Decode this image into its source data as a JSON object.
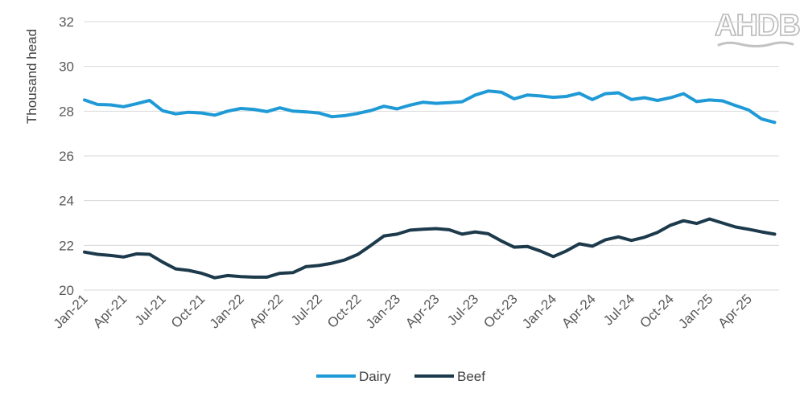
{
  "logo": {
    "text": "AHDB"
  },
  "chart_data": {
    "type": "line",
    "title": "",
    "xlabel": "",
    "ylabel": "Thousand head",
    "ylim": [
      20,
      32
    ],
    "yticks": [
      20,
      22,
      24,
      26,
      28,
      30,
      32
    ],
    "grid": true,
    "legend_position": "bottom",
    "x_tick_labels": [
      "Jan-21",
      "Apr-21",
      "Jul-21",
      "Oct-21",
      "Jan-22",
      "Apr-22",
      "Jul-22",
      "Oct-22",
      "Jan-23",
      "Apr-23",
      "Jul-23",
      "Oct-23",
      "Jan-24",
      "Apr-24",
      "Jul-24",
      "Oct-24",
      "Jan-25",
      "Apr-25"
    ],
    "x": [
      "Jan-21",
      "Feb-21",
      "Mar-21",
      "Apr-21",
      "May-21",
      "Jun-21",
      "Jul-21",
      "Aug-21",
      "Sep-21",
      "Oct-21",
      "Nov-21",
      "Dec-21",
      "Jan-22",
      "Feb-22",
      "Mar-22",
      "Apr-22",
      "May-22",
      "Jun-22",
      "Jul-22",
      "Aug-22",
      "Sep-22",
      "Oct-22",
      "Nov-22",
      "Dec-22",
      "Jan-23",
      "Feb-23",
      "Mar-23",
      "Apr-23",
      "May-23",
      "Jun-23",
      "Jul-23",
      "Aug-23",
      "Sep-23",
      "Oct-23",
      "Nov-23",
      "Dec-23",
      "Jan-24",
      "Feb-24",
      "Mar-24",
      "Apr-24",
      "May-24",
      "Jun-24",
      "Jul-24",
      "Aug-24",
      "Sep-24",
      "Oct-24",
      "Nov-24",
      "Dec-24",
      "Jan-25",
      "Feb-25",
      "Mar-25",
      "Apr-25",
      "May-25",
      "Jun-25"
    ],
    "series": [
      {
        "name": "Dairy",
        "color": "#1f9ad6",
        "values": [
          28.5,
          28.3,
          28.28,
          28.2,
          28.33,
          28.48,
          28.02,
          27.88,
          27.95,
          27.92,
          27.82,
          28.0,
          28.12,
          28.08,
          27.98,
          28.15,
          28.0,
          27.97,
          27.92,
          27.75,
          27.8,
          27.9,
          28.03,
          28.22,
          28.1,
          28.27,
          28.4,
          28.35,
          28.38,
          28.42,
          28.72,
          28.9,
          28.85,
          28.55,
          28.72,
          28.68,
          28.62,
          28.66,
          28.8,
          28.52,
          28.78,
          28.82,
          28.52,
          28.6,
          28.48,
          28.6,
          28.78,
          28.43,
          28.5,
          28.46,
          28.25,
          28.05,
          27.65,
          27.5
        ]
      },
      {
        "name": "Beef",
        "color": "#1c3a4b",
        "values": [
          21.7,
          21.6,
          21.55,
          21.48,
          21.62,
          21.6,
          21.25,
          20.95,
          20.88,
          20.75,
          20.55,
          20.65,
          20.6,
          20.58,
          20.58,
          20.75,
          20.78,
          21.05,
          21.1,
          21.2,
          21.35,
          21.6,
          22.0,
          22.42,
          22.5,
          22.68,
          22.72,
          22.75,
          22.7,
          22.5,
          22.6,
          22.52,
          22.2,
          21.92,
          21.95,
          21.75,
          21.5,
          21.75,
          22.07,
          21.96,
          22.25,
          22.38,
          22.22,
          22.36,
          22.58,
          22.9,
          23.1,
          22.98,
          23.18,
          23.0,
          22.82,
          22.72,
          22.6,
          22.5
        ]
      }
    ]
  }
}
